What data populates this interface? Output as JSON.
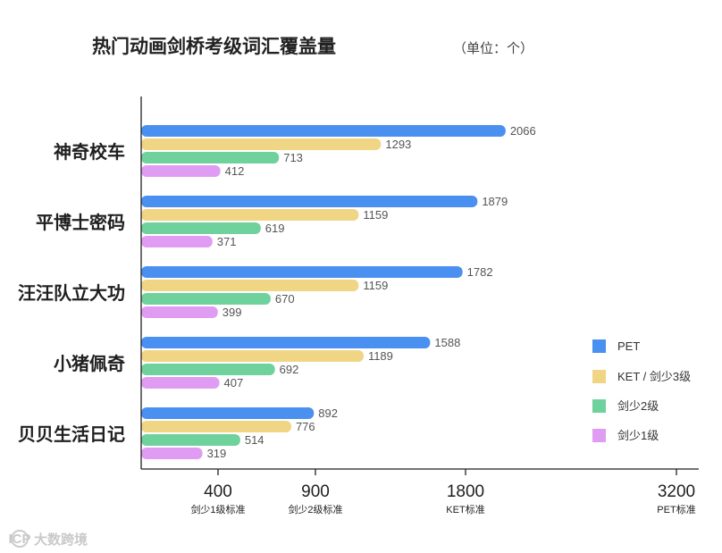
{
  "chart_data": {
    "type": "bar",
    "orientation": "horizontal",
    "title": "热门动画剑桥考级词汇覆盖量",
    "unit": "（单位：个）",
    "categories": [
      "神奇校车",
      "平博士密码",
      "汪汪队立大功",
      "小猪佩奇",
      "贝贝生活日记"
    ],
    "series": [
      {
        "name": "PET",
        "color": "#4a90f0",
        "values": [
          2066,
          1879,
          1782,
          1588,
          892
        ]
      },
      {
        "name": "KET / 剑少3级",
        "color": "#f0d584",
        "values": [
          1293,
          1159,
          1159,
          1189,
          776
        ]
      },
      {
        "name": "剑少2级",
        "color": "#6fd19b",
        "values": [
          713,
          619,
          670,
          692,
          514
        ]
      },
      {
        "name": "剑少1级",
        "color": "#df9cf2",
        "values": [
          412,
          371,
          399,
          407,
          319
        ]
      }
    ],
    "benchmarks": [
      {
        "value": 400,
        "label": "400",
        "caption": "剑少1级标准"
      },
      {
        "value": 900,
        "label": "900",
        "caption": "剑少2级标准"
      },
      {
        "value": 1800,
        "label": "1800",
        "caption": "KET标准"
      },
      {
        "value": 3200,
        "label": "3200",
        "caption": "PET标准"
      }
    ],
    "xlim": [
      0,
      3200
    ],
    "x_scale": "piecewise",
    "grid": false,
    "legend_position": "right"
  },
  "watermark": {
    "logo": "ICP",
    "text": "大数跨境"
  }
}
